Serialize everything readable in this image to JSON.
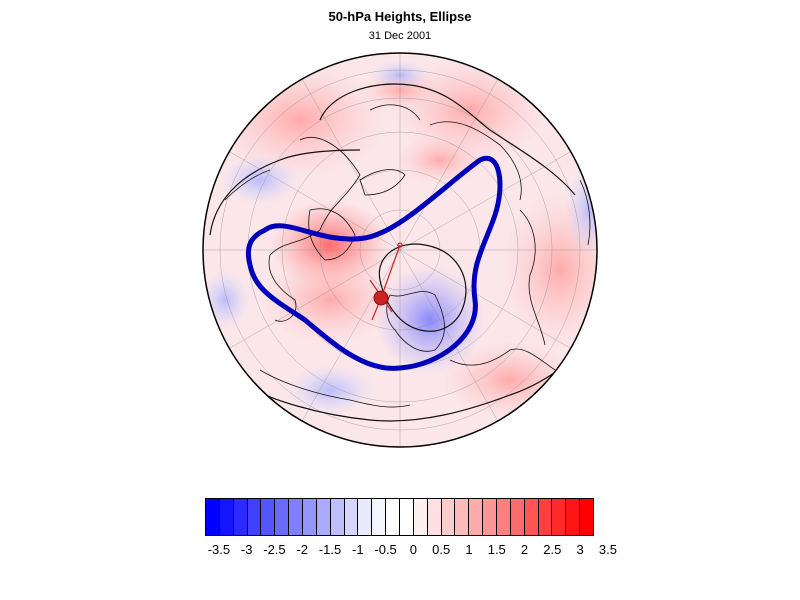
{
  "title": "50-hPa Heights, Ellipse",
  "subtitle": "31 Dec 2001",
  "colors": {
    "negative_max": "#0000ff",
    "neutral": "#ffffff",
    "positive_max": "#ff0000",
    "ellipse": "#0000bb",
    "center_marker": "#cc2222",
    "coast": "#000000"
  },
  "colorbar": {
    "min": -3.5,
    "max": 3.5,
    "step": 0.25,
    "labels": [
      "-3.5",
      "-3",
      "-2.5",
      "-2",
      "-1.5",
      "-1",
      "-0.5",
      "0",
      "0.5",
      "1",
      "1.5",
      "2",
      "2.5",
      "3",
      "3.5"
    ],
    "cells": [
      "#0000ff",
      "#1515ff",
      "#2b2bff",
      "#4040ff",
      "#5555ff",
      "#6a6aff",
      "#8080ff",
      "#9595ff",
      "#aaaaff",
      "#bfbfff",
      "#d5d5ff",
      "#eaeaff",
      "#f5f5ff",
      "#ffffff",
      "#ffffff",
      "#fff0f0",
      "#ffe0e0",
      "#ffcccc",
      "#ffbbbb",
      "#ffaaaa",
      "#ff9595",
      "#ff8080",
      "#ff6a6a",
      "#ff5555",
      "#ff4040",
      "#ff2b2b",
      "#ff1515",
      "#ff0000"
    ]
  },
  "map": {
    "projection": "north-polar-orthographic",
    "ellipse_label": "Ellipse",
    "center_marker": "vortex-centroid"
  }
}
